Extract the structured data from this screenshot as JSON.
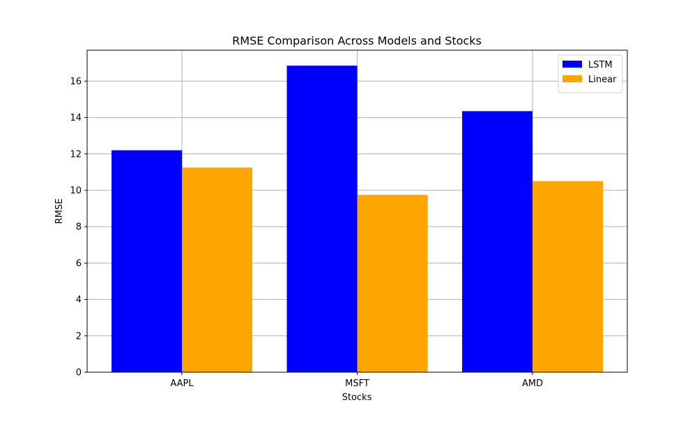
{
  "chart_data": {
    "type": "bar",
    "title": "RMSE Comparison Across Models and Stocks",
    "xlabel": "Stocks",
    "ylabel": "RMSE",
    "categories": [
      "AAPL",
      "MSFT",
      "AMD"
    ],
    "series": [
      {
        "name": "LSTM",
        "color": "#0000ff",
        "values": [
          12.2,
          16.85,
          14.35
        ]
      },
      {
        "name": "Linear",
        "color": "#ffa500",
        "values": [
          11.25,
          9.75,
          10.5
        ]
      }
    ],
    "ylim": [
      0,
      17.7
    ],
    "yticks": [
      "0",
      "2",
      "4",
      "6",
      "8",
      "10",
      "12",
      "14",
      "16"
    ],
    "grid": true,
    "legend_position": "top-right"
  }
}
